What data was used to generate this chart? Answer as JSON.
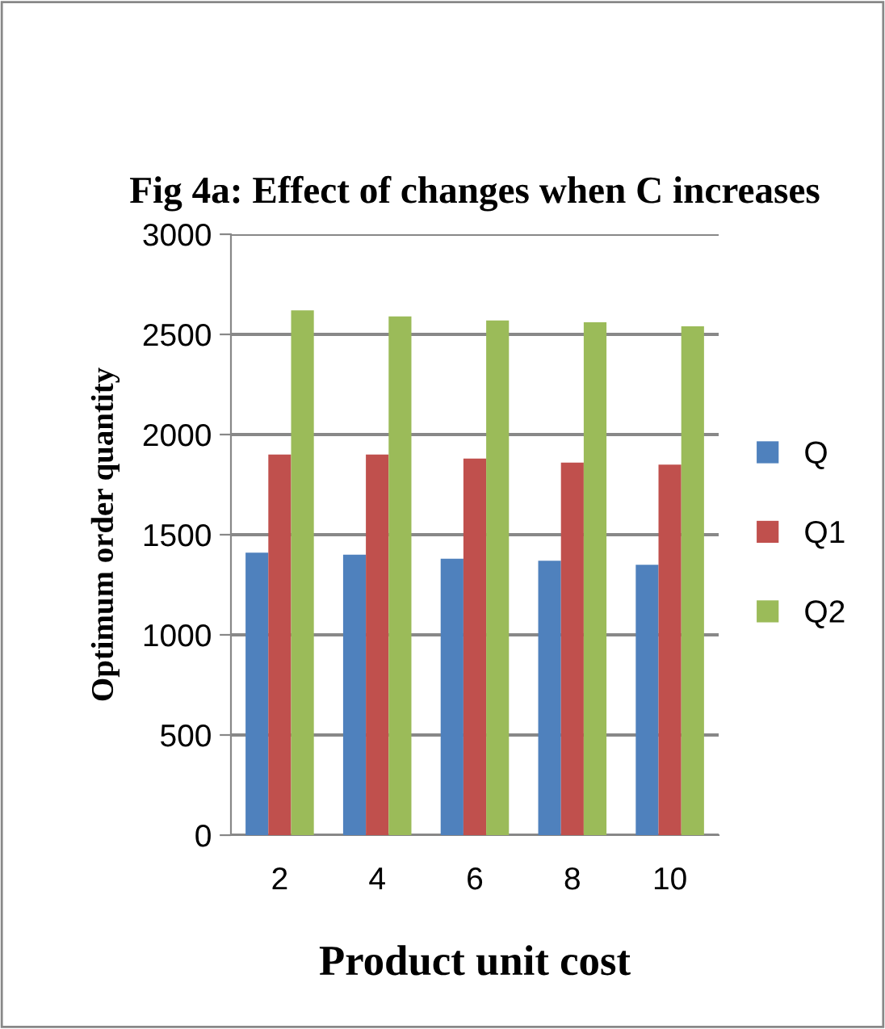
{
  "chart_data": {
    "type": "bar",
    "title": "Fig 4a: Effect of changes when C increases",
    "xlabel": "Product unit cost",
    "ylabel": "Optimum order quantity",
    "categories": [
      "2",
      "4",
      "6",
      "8",
      "10"
    ],
    "series": [
      {
        "name": "Q",
        "color": "#4f81bd",
        "values": [
          1410,
          1400,
          1380,
          1370,
          1350
        ]
      },
      {
        "name": "Q1",
        "color": "#c0504d",
        "values": [
          1900,
          1900,
          1880,
          1860,
          1850
        ]
      },
      {
        "name": "Q2",
        "color": "#9bbb59",
        "values": [
          2620,
          2590,
          2570,
          2560,
          2540
        ]
      }
    ],
    "ylim": [
      0,
      3000
    ],
    "yticks": [
      0,
      500,
      1000,
      1500,
      2000,
      2500,
      3000
    ],
    "grid": "y",
    "legend": "right"
  }
}
